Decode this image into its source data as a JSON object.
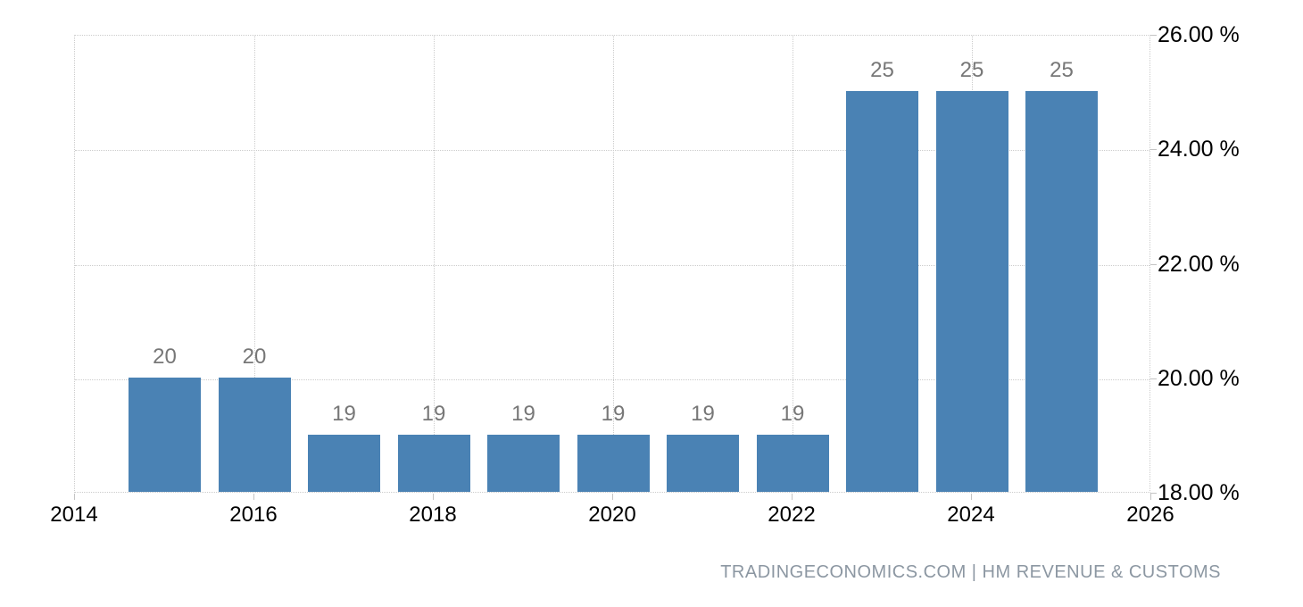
{
  "chart_data": {
    "type": "bar",
    "title": "",
    "xlabel": "",
    "ylabel": "",
    "categories": [
      2015,
      2016,
      2017,
      2018,
      2019,
      2020,
      2021,
      2022,
      2023,
      2024,
      2025
    ],
    "values": [
      20,
      20,
      19,
      19,
      19,
      19,
      19,
      19,
      25,
      25,
      25
    ],
    "bar_value_labels": [
      "20",
      "20",
      "19",
      "19",
      "19",
      "19",
      "19",
      "19",
      "25",
      "25",
      "25"
    ],
    "x_axis": {
      "range": [
        2014,
        2026
      ],
      "ticks": [
        2014,
        2016,
        2018,
        2020,
        2022,
        2024,
        2026
      ]
    },
    "y_axis": {
      "range": [
        18,
        26
      ],
      "tick_values": [
        26,
        24,
        22,
        20,
        18
      ],
      "tick_labels": [
        "26.00 %",
        "24.00 %",
        "22.00 %",
        "20.00 %",
        "18.00 %"
      ],
      "unit": "%",
      "position": "right"
    },
    "grid": {
      "style": "dotted",
      "color": "#cccccc",
      "horizontal_lines_at": [
        24,
        22,
        20
      ],
      "vertical_lines_at": [
        2016,
        2018,
        2020,
        2022,
        2024
      ]
    },
    "legend": "none",
    "colors": {
      "bar": "#4a82b4",
      "bar_label": "#777777",
      "axis_text": "#000000",
      "attribution_text": "#8c97a2",
      "background": "#ffffff"
    },
    "attribution": "TRADINGECONOMICS.COM | HM REVENUE & CUSTOMS"
  }
}
